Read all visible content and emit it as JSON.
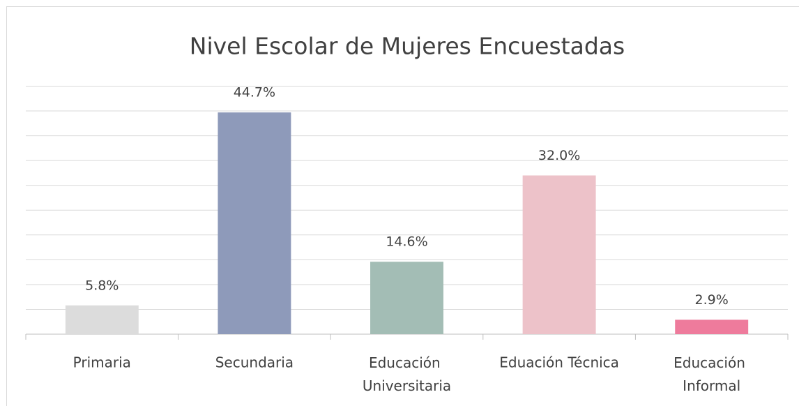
{
  "chart_data": {
    "type": "bar",
    "title": "Nivel Escolar de Mujeres Encuestadas",
    "categories": [
      "Primaria",
      "Secundaria",
      "Educación Universitaria",
      "Eduación Técnica",
      "Educación Informal"
    ],
    "values": [
      5.8,
      44.7,
      14.6,
      32.0,
      2.9
    ],
    "value_labels": [
      "5.8%",
      "44.7%",
      "14.6%",
      "32.0%",
      "2.9%"
    ],
    "colors": [
      "#dcdcdc",
      "#8e9aba",
      "#a3bdb5",
      "#edc2c9",
      "#ee7b9c"
    ],
    "ylim": [
      0,
      50
    ],
    "yticks": [
      0,
      5,
      10,
      15,
      20,
      25,
      30,
      35,
      40,
      45,
      50
    ],
    "grid": true
  }
}
